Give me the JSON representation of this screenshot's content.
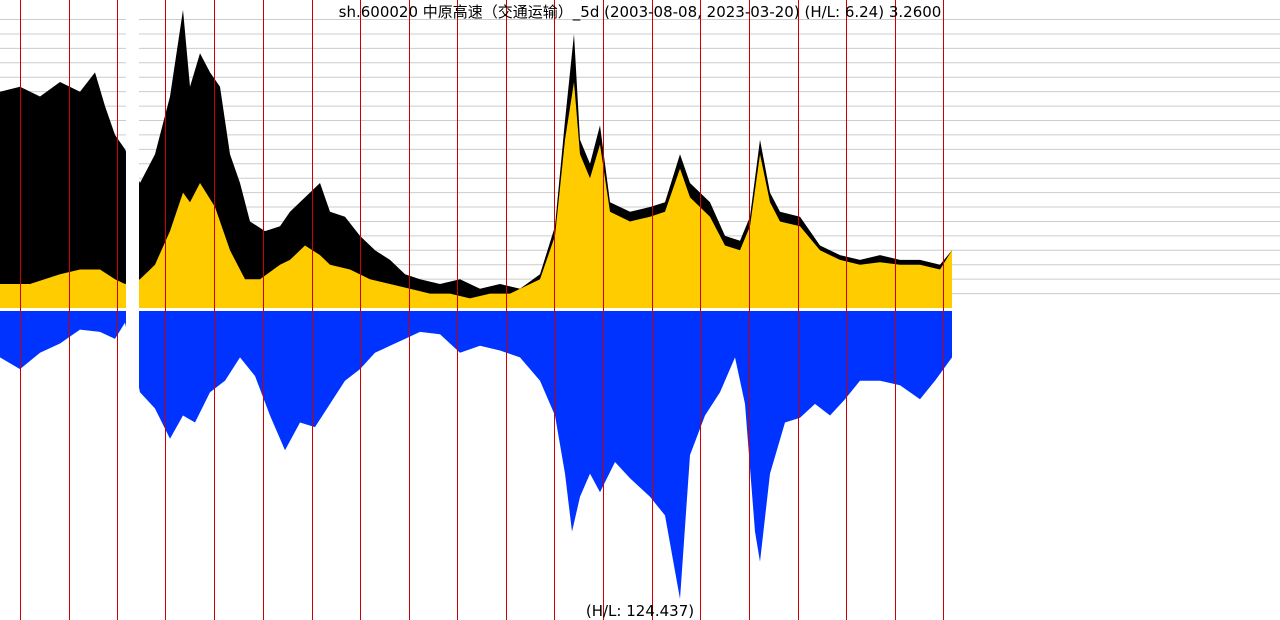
{
  "chart_data": {
    "type": "area",
    "title": "sh.600020 中原高速（交通运输）_5d (2003-08-08, 2023-03-20) (H/L: 6.24) 3.2600",
    "volume_label": "(H/L: 124.437)",
    "colors": {
      "price_high": "#000000",
      "price_fill": "#ffcc00",
      "volume": "#0033ff",
      "year_line": "#cc0000",
      "grid": "#cccccc",
      "divider": "#ffffff"
    },
    "price_ylim": [
      0,
      6.24
    ],
    "price_gridlines": [
      0.3,
      0.6,
      0.9,
      1.2,
      1.5,
      1.8,
      2.1,
      2.4,
      2.7,
      3.0,
      3.3,
      3.6,
      3.9,
      4.2,
      4.5,
      4.8,
      5.1,
      5.4,
      5.7,
      6.0
    ],
    "volume_ylim": [
      0,
      124.437
    ],
    "series": [
      {
        "name": "high",
        "points": [
          [
            0,
            4.5
          ],
          [
            20,
            4.6
          ],
          [
            40,
            4.4
          ],
          [
            60,
            4.7
          ],
          [
            80,
            4.5
          ],
          [
            95,
            4.9
          ],
          [
            105,
            4.2
          ],
          [
            115,
            3.6
          ],
          [
            125,
            3.3
          ],
          [
            140,
            2.6
          ],
          [
            155,
            3.2
          ],
          [
            170,
            4.4
          ],
          [
            183,
            6.2
          ],
          [
            190,
            4.6
          ],
          [
            200,
            5.3
          ],
          [
            210,
            4.9
          ],
          [
            220,
            4.6
          ],
          [
            230,
            3.2
          ],
          [
            240,
            2.6
          ],
          [
            250,
            1.8
          ],
          [
            265,
            1.6
          ],
          [
            280,
            1.7
          ],
          [
            290,
            2.0
          ],
          [
            305,
            2.3
          ],
          [
            320,
            2.6
          ],
          [
            330,
            2.0
          ],
          [
            345,
            1.9
          ],
          [
            360,
            1.5
          ],
          [
            375,
            1.2
          ],
          [
            390,
            1.0
          ],
          [
            405,
            0.7
          ],
          [
            420,
            0.6
          ],
          [
            440,
            0.5
          ],
          [
            460,
            0.6
          ],
          [
            480,
            0.4
          ],
          [
            500,
            0.5
          ],
          [
            520,
            0.4
          ],
          [
            540,
            0.7
          ],
          [
            555,
            1.7
          ],
          [
            565,
            3.9
          ],
          [
            574,
            5.7
          ],
          [
            580,
            3.5
          ],
          [
            590,
            3.0
          ],
          [
            600,
            3.8
          ],
          [
            610,
            2.2
          ],
          [
            630,
            2.0
          ],
          [
            650,
            2.1
          ],
          [
            665,
            2.2
          ],
          [
            680,
            3.2
          ],
          [
            690,
            2.6
          ],
          [
            710,
            2.2
          ],
          [
            725,
            1.5
          ],
          [
            740,
            1.4
          ],
          [
            750,
            1.9
          ],
          [
            760,
            3.5
          ],
          [
            770,
            2.4
          ],
          [
            780,
            2.0
          ],
          [
            800,
            1.9
          ],
          [
            820,
            1.3
          ],
          [
            840,
            1.1
          ],
          [
            860,
            1.0
          ],
          [
            880,
            1.1
          ],
          [
            900,
            1.0
          ],
          [
            920,
            1.0
          ],
          [
            940,
            0.9
          ],
          [
            952,
            1.2
          ]
        ]
      },
      {
        "name": "close",
        "points": [
          [
            0,
            0.5
          ],
          [
            30,
            0.5
          ],
          [
            60,
            0.7
          ],
          [
            80,
            0.8
          ],
          [
            100,
            0.8
          ],
          [
            115,
            0.6
          ],
          [
            125,
            0.5
          ],
          [
            140,
            0.6
          ],
          [
            155,
            0.9
          ],
          [
            170,
            1.6
          ],
          [
            183,
            2.4
          ],
          [
            190,
            2.2
          ],
          [
            200,
            2.6
          ],
          [
            215,
            2.1
          ],
          [
            230,
            1.2
          ],
          [
            245,
            0.6
          ],
          [
            260,
            0.6
          ],
          [
            280,
            0.9
          ],
          [
            290,
            1.0
          ],
          [
            305,
            1.3
          ],
          [
            320,
            1.1
          ],
          [
            330,
            0.9
          ],
          [
            350,
            0.8
          ],
          [
            370,
            0.6
          ],
          [
            390,
            0.5
          ],
          [
            410,
            0.4
          ],
          [
            430,
            0.3
          ],
          [
            450,
            0.3
          ],
          [
            470,
            0.2
          ],
          [
            490,
            0.3
          ],
          [
            510,
            0.3
          ],
          [
            540,
            0.6
          ],
          [
            555,
            1.5
          ],
          [
            565,
            3.5
          ],
          [
            574,
            4.7
          ],
          [
            580,
            3.2
          ],
          [
            590,
            2.7
          ],
          [
            600,
            3.4
          ],
          [
            610,
            2.0
          ],
          [
            630,
            1.8
          ],
          [
            650,
            1.9
          ],
          [
            665,
            2.0
          ],
          [
            680,
            2.9
          ],
          [
            690,
            2.3
          ],
          [
            710,
            1.9
          ],
          [
            725,
            1.3
          ],
          [
            740,
            1.2
          ],
          [
            750,
            1.7
          ],
          [
            760,
            3.2
          ],
          [
            770,
            2.2
          ],
          [
            780,
            1.8
          ],
          [
            800,
            1.7
          ],
          [
            820,
            1.2
          ],
          [
            840,
            1.0
          ],
          [
            860,
            0.9
          ],
          [
            880,
            0.95
          ],
          [
            900,
            0.9
          ],
          [
            920,
            0.9
          ],
          [
            940,
            0.8
          ],
          [
            952,
            1.2
          ]
        ]
      },
      {
        "name": "volume",
        "points": [
          [
            0,
            20
          ],
          [
            20,
            25
          ],
          [
            40,
            18
          ],
          [
            60,
            14
          ],
          [
            80,
            8
          ],
          [
            100,
            9
          ],
          [
            115,
            12
          ],
          [
            125,
            5
          ],
          [
            140,
            35
          ],
          [
            155,
            42
          ],
          [
            170,
            55
          ],
          [
            183,
            45
          ],
          [
            195,
            48
          ],
          [
            210,
            35
          ],
          [
            225,
            30
          ],
          [
            240,
            20
          ],
          [
            255,
            28
          ],
          [
            270,
            45
          ],
          [
            285,
            60
          ],
          [
            300,
            48
          ],
          [
            315,
            50
          ],
          [
            330,
            40
          ],
          [
            345,
            30
          ],
          [
            360,
            25
          ],
          [
            375,
            18
          ],
          [
            390,
            15
          ],
          [
            405,
            12
          ],
          [
            420,
            9
          ],
          [
            440,
            10
          ],
          [
            460,
            18
          ],
          [
            480,
            15
          ],
          [
            500,
            17
          ],
          [
            520,
            20
          ],
          [
            540,
            30
          ],
          [
            555,
            45
          ],
          [
            565,
            70
          ],
          [
            572,
            95
          ],
          [
            580,
            80
          ],
          [
            590,
            70
          ],
          [
            600,
            78
          ],
          [
            615,
            65
          ],
          [
            630,
            72
          ],
          [
            650,
            80
          ],
          [
            665,
            88
          ],
          [
            680,
            124
          ],
          [
            690,
            62
          ],
          [
            705,
            45
          ],
          [
            720,
            35
          ],
          [
            735,
            20
          ],
          [
            745,
            40
          ],
          [
            755,
            95
          ],
          [
            760,
            108
          ],
          [
            770,
            70
          ],
          [
            785,
            48
          ],
          [
            800,
            46
          ],
          [
            815,
            40
          ],
          [
            830,
            45
          ],
          [
            845,
            38
          ],
          [
            860,
            30
          ],
          [
            880,
            30
          ],
          [
            900,
            32
          ],
          [
            920,
            38
          ],
          [
            935,
            30
          ],
          [
            952,
            20
          ]
        ]
      }
    ],
    "gaps": [
      [
        126,
        139
      ]
    ],
    "year_markers": [
      20,
      69,
      117,
      165,
      214,
      263,
      312,
      360,
      409,
      457,
      506,
      554,
      603,
      652,
      700,
      749,
      798,
      846,
      895,
      943
    ]
  }
}
